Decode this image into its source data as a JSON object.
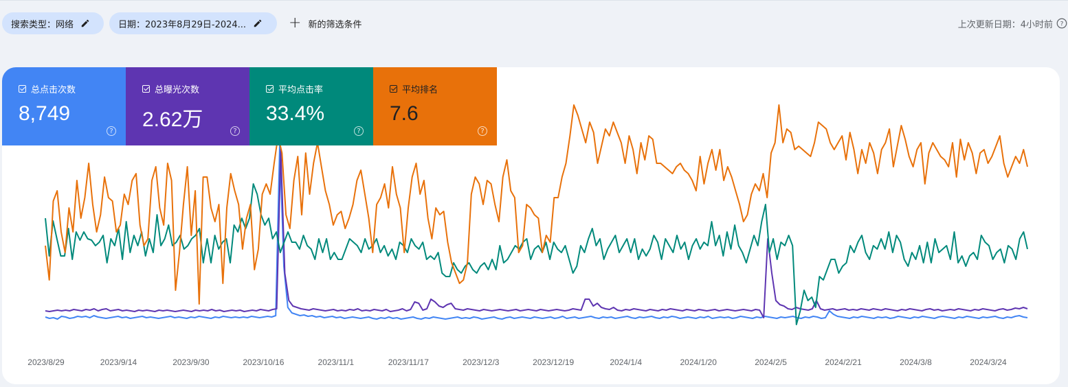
{
  "filters": {
    "search_type": "搜索类型：网络",
    "date": "日期：2023年8月29日-2024...",
    "add_filter": "新的筛选条件"
  },
  "last_updated": "上次更新日期：4小时前",
  "metrics": {
    "clicks": {
      "label": "总点击次数",
      "value": "8,749",
      "color": "#4285f4",
      "checked": true
    },
    "impressions": {
      "label": "总曝光次数",
      "value": "2.62万",
      "color": "#5e35b1",
      "checked": true
    },
    "ctr": {
      "label": "平均点击率",
      "value": "33.4%",
      "color": "#00897b",
      "checked": true
    },
    "position": {
      "label": "平均排名",
      "value": "7.6",
      "color": "#e8710a",
      "checked": true
    }
  },
  "chart_data": {
    "type": "line",
    "x_ticks": [
      "2023/8/29",
      "2023/9/14",
      "2023/9/30",
      "2023/10/16",
      "2023/11/1",
      "2023/11/17",
      "2023/12/3",
      "2023/12/19",
      "2024/1/4",
      "2024/1/20",
      "2024/2/5",
      "2024/2/21",
      "2024/3/8",
      "2024/3/24"
    ],
    "grid": false,
    "legend": "metric cards (top)",
    "series": [
      {
        "name": "总点击次数",
        "color": "#4285f4",
        "values": [
          46,
          44,
          45,
          43,
          47,
          46,
          44,
          45,
          47,
          46,
          47,
          45,
          48,
          46,
          45,
          44,
          45,
          46,
          47,
          45,
          46,
          44,
          45,
          46,
          47,
          45,
          46,
          45,
          44,
          45,
          46,
          47,
          45,
          46,
          45,
          44,
          46,
          45,
          47,
          46,
          45,
          44,
          46,
          45,
          47,
          46,
          45,
          46,
          45,
          46,
          45,
          47,
          46,
          45,
          46,
          47,
          46,
          48,
          300,
          120,
          60,
          52,
          50,
          48,
          49,
          47,
          48,
          46,
          47,
          45,
          46,
          47,
          45,
          46,
          44,
          45,
          46,
          45,
          44,
          45,
          46,
          44,
          43,
          45,
          44,
          46,
          44,
          45,
          43,
          44,
          45,
          46,
          44,
          43,
          45,
          44,
          46,
          45,
          44,
          43,
          44,
          45,
          46,
          44,
          45,
          44,
          46,
          45,
          43,
          44,
          45,
          46,
          44,
          43,
          45,
          46,
          44,
          45,
          46,
          45,
          44,
          46,
          45,
          44,
          45,
          46,
          44,
          45,
          47,
          44,
          45,
          46,
          44,
          45,
          46,
          47,
          45,
          44,
          46,
          45,
          46,
          44,
          45,
          46,
          47,
          45,
          44,
          46,
          45,
          46,
          47,
          45,
          44,
          46,
          45,
          47,
          46,
          44,
          45,
          46,
          45,
          44,
          46,
          45,
          47,
          44,
          45,
          46,
          45,
          46,
          44,
          45,
          47,
          46,
          45,
          44,
          46,
          45,
          47,
          46,
          45,
          44,
          46,
          45,
          46,
          47,
          45,
          44,
          46,
          45,
          47,
          46,
          44,
          45,
          55,
          50,
          47,
          46,
          45,
          44,
          46,
          45,
          47,
          46,
          45,
          44,
          46,
          45,
          46,
          44,
          45,
          47,
          46,
          45,
          44,
          46,
          45,
          47,
          46,
          45,
          44,
          46,
          47,
          46,
          45,
          44,
          46,
          45,
          47,
          46,
          45,
          44,
          46,
          45,
          46,
          47,
          45,
          44,
          46,
          45,
          47,
          48,
          46,
          45
        ]
      },
      {
        "name": "总曝光次数",
        "color": "#5e35b1",
        "values": [
          55,
          54,
          55,
          56,
          55,
          56,
          55,
          57,
          56,
          55,
          57,
          56,
          58,
          55,
          57,
          58,
          55,
          56,
          57,
          55,
          56,
          55,
          54,
          56,
          55,
          56,
          55,
          54,
          56,
          55,
          56,
          55,
          54,
          55,
          56,
          55,
          54,
          56,
          55,
          56,
          55,
          57,
          55,
          56,
          54,
          55,
          56,
          55,
          56,
          54,
          55,
          56,
          55,
          57,
          56,
          55,
          57,
          58,
          290,
          110,
          70,
          62,
          60,
          58,
          57,
          56,
          58,
          57,
          56,
          55,
          56,
          57,
          55,
          56,
          55,
          57,
          56,
          58,
          55,
          56,
          55,
          57,
          56,
          55,
          57,
          54,
          55,
          56,
          58,
          55,
          57,
          68,
          66,
          56,
          58,
          72,
          68,
          62,
          60,
          64,
          66,
          58,
          57,
          56,
          58,
          57,
          56,
          55,
          57,
          56,
          55,
          56,
          57,
          56,
          55,
          56,
          57,
          55,
          56,
          57,
          56,
          55,
          57,
          56,
          55,
          56,
          57,
          56,
          55,
          56,
          58,
          57,
          56,
          72,
          72,
          62,
          66,
          60,
          58,
          57,
          60,
          56,
          55,
          57,
          56,
          58,
          57,
          56,
          55,
          57,
          56,
          55,
          57,
          56,
          58,
          57,
          56,
          55,
          57,
          56,
          55,
          57,
          56,
          55,
          56,
          57,
          55,
          56,
          57,
          56,
          55,
          56,
          57,
          56,
          55,
          57,
          56,
          45,
          160,
          110,
          70,
          64,
          62,
          58,
          57,
          60,
          58,
          57,
          56,
          58,
          70,
          58,
          56,
          57,
          58,
          56,
          57,
          58,
          56,
          57,
          56,
          58,
          57,
          56,
          58,
          57,
          56,
          58,
          57,
          56,
          55,
          57,
          56,
          58,
          57,
          56,
          55,
          57,
          58,
          56,
          57,
          55,
          56,
          57,
          56,
          58,
          57,
          56,
          55,
          57,
          56,
          58,
          57,
          56,
          55,
          57,
          58,
          56,
          57,
          59,
          58,
          60,
          58
        ]
      },
      {
        "name": "平均点击率",
        "color": "#00897b",
        "values": [
          190,
          135,
          186,
          160,
          135,
          135,
          175,
          130,
          170,
          158,
          170,
          160,
          158,
          150,
          155,
          165,
          125,
          160,
          150,
          175,
          130,
          185,
          140,
          165,
          150,
          170,
          135,
          160,
          140,
          195,
          150,
          160,
          180,
          150,
          155,
          165,
          145,
          150,
          160,
          165,
          175,
          125,
          160,
          125,
          165,
          145,
          155,
          160,
          125,
          180,
          170,
          190,
          175,
          190,
          240,
          225,
          195,
          180,
          190,
          160,
          170,
          140,
          155,
          170,
          155,
          155,
          145,
          165,
          150,
          145,
          130,
          160,
          140,
          160,
          130,
          140,
          130,
          130,
          145,
          160,
          155,
          150,
          140,
          160,
          145,
          150,
          160,
          140,
          150,
          135,
          145,
          130,
          155,
          150,
          140,
          160,
          150,
          145,
          155,
          130,
          135,
          130,
          140,
          110,
          105,
          105,
          125,
          115,
          110,
          120,
          125,
          115,
          110,
          120,
          125,
          115,
          130,
          115,
          150,
          125,
          130,
          140,
          150,
          145,
          155,
          160,
          130,
          145,
          150,
          140,
          155,
          130,
          155,
          145,
          140,
          150,
          130,
          110,
          120,
          150,
          140,
          160,
          175,
          150,
          160,
          130,
          145,
          155,
          165,
          140,
          150,
          160,
          140,
          160,
          130,
          145,
          135,
          145,
          165,
          155,
          130,
          160,
          150,
          140,
          165,
          145,
          155,
          130,
          150,
          160,
          145,
          155,
          150,
          185,
          150,
          165,
          135,
          170,
          145,
          180,
          150,
          140,
          125,
          145,
          165,
          150,
          185,
          210,
          140,
          160,
          130,
          155,
          150,
          165,
          150,
          35,
          55,
          85,
          70,
          75,
          60,
          105,
          100,
          115,
          130,
          130,
          110,
          120,
          125,
          150,
          140,
          155,
          165,
          140,
          130,
          150,
          145,
          160,
          145,
          170,
          140,
          165,
          155,
          130,
          120,
          140,
          130,
          150,
          125,
          155,
          125,
          160,
          140,
          145,
          150,
          130,
          170,
          125,
          135,
          120,
          135,
          140,
          130,
          165,
          155,
          150,
          130,
          140,
          145,
          125,
          150,
          145,
          130,
          160,
          170,
          145
        ]
      },
      {
        "name": "平均排名",
        "color": "#e8710a",
        "values": [
          150,
          100,
          215,
          230,
          170,
          140,
          205,
          170,
          245,
          190,
          220,
          270,
          210,
          170,
          195,
          250,
          220,
          215,
          170,
          180,
          225,
          210,
          245,
          255,
          180,
          150,
          160,
          245,
          265,
          205,
          180,
          270,
          245,
          85,
          140,
          210,
          265,
          165,
          230,
          65,
          250,
          250,
          205,
          185,
          210,
          95,
          205,
          255,
          230,
          210,
          145,
          190,
          210,
          115,
          145,
          225,
          240,
          225,
          270,
          310,
          285,
          195,
          175,
          245,
          280,
          195,
          285,
          225,
          270,
          300,
          265,
          230,
          210,
          180,
          195,
          200,
          175,
          190,
          210,
          245,
          260,
          225,
          190,
          140,
          210,
          220,
          240,
          205,
          265,
          225,
          205,
          140,
          205,
          250,
          270,
          225,
          245,
          190,
          160,
          205,
          195,
          200,
          155,
          125,
          110,
          95,
          100,
          125,
          225,
          250,
          240,
          210,
          245,
          240,
          210,
          185,
          250,
          275,
          230,
          220,
          140,
          150,
          210,
          205,
          195,
          190,
          140,
          165,
          155,
          220,
          220,
          250,
          270,
          310,
          355,
          340,
          320,
          300,
          330,
          315,
          270,
          295,
          320,
          310,
          330,
          315,
          300,
          270,
          310,
          290,
          255,
          300,
          275,
          310,
          305,
          270,
          270,
          265,
          260,
          255,
          265,
          270,
          260,
          255,
          245,
          230,
          280,
          240,
          270,
          290,
          260,
          290,
          245,
          265,
          250,
          230,
          210,
          185,
          195,
          225,
          240,
          230,
          255,
          220,
          285,
          300,
          355,
          300,
          320,
          315,
          290,
          295,
          290,
          285,
          280,
          300,
          330,
          325,
          320,
          300,
          290,
          300,
          310,
          275,
          315,
          290,
          255,
          290,
          270,
          300,
          285,
          255,
          290,
          300,
          320,
          265,
          295,
          325,
          305,
          280,
          265,
          290,
          300,
          240,
          285,
          300,
          290,
          280,
          275,
          265,
          300,
          250,
          305,
          275,
          300,
          285,
          255,
          285,
          290,
          270,
          280,
          295,
          310,
          270,
          250,
          265,
          280,
          270,
          290,
          265
        ]
      }
    ]
  }
}
